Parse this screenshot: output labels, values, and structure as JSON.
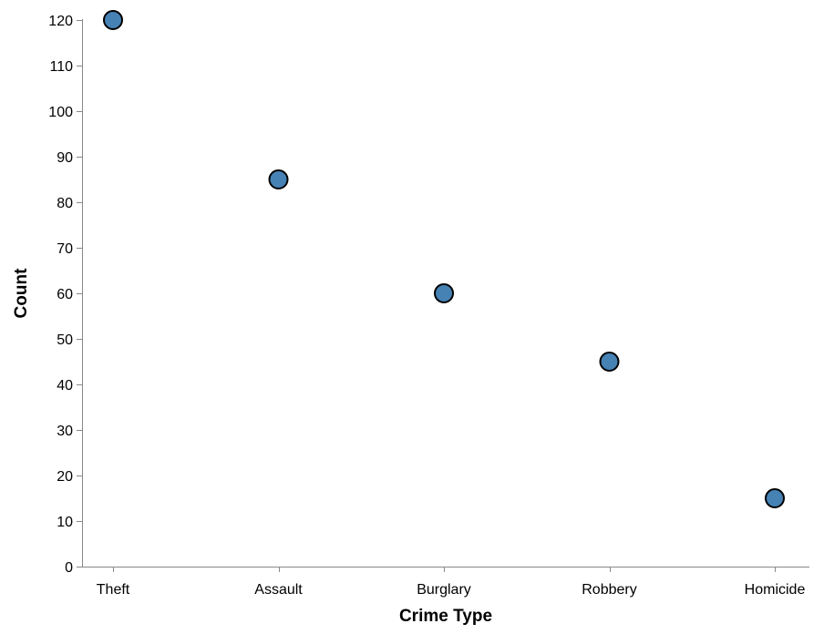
{
  "chart_data": {
    "type": "scatter",
    "title": "",
    "xlabel": "Crime Type",
    "ylabel": "Count",
    "categories": [
      "Theft",
      "Assault",
      "Burglary",
      "Robbery",
      "Homicide"
    ],
    "values": [
      120,
      85,
      60,
      45,
      15
    ],
    "ylim": [
      0,
      120
    ],
    "yticks": [
      0,
      10,
      20,
      30,
      40,
      50,
      60,
      70,
      80,
      90,
      100,
      110,
      120
    ],
    "grid": false,
    "legend": "none",
    "point_color": "#4682b4",
    "point_stroke": "#000000"
  }
}
